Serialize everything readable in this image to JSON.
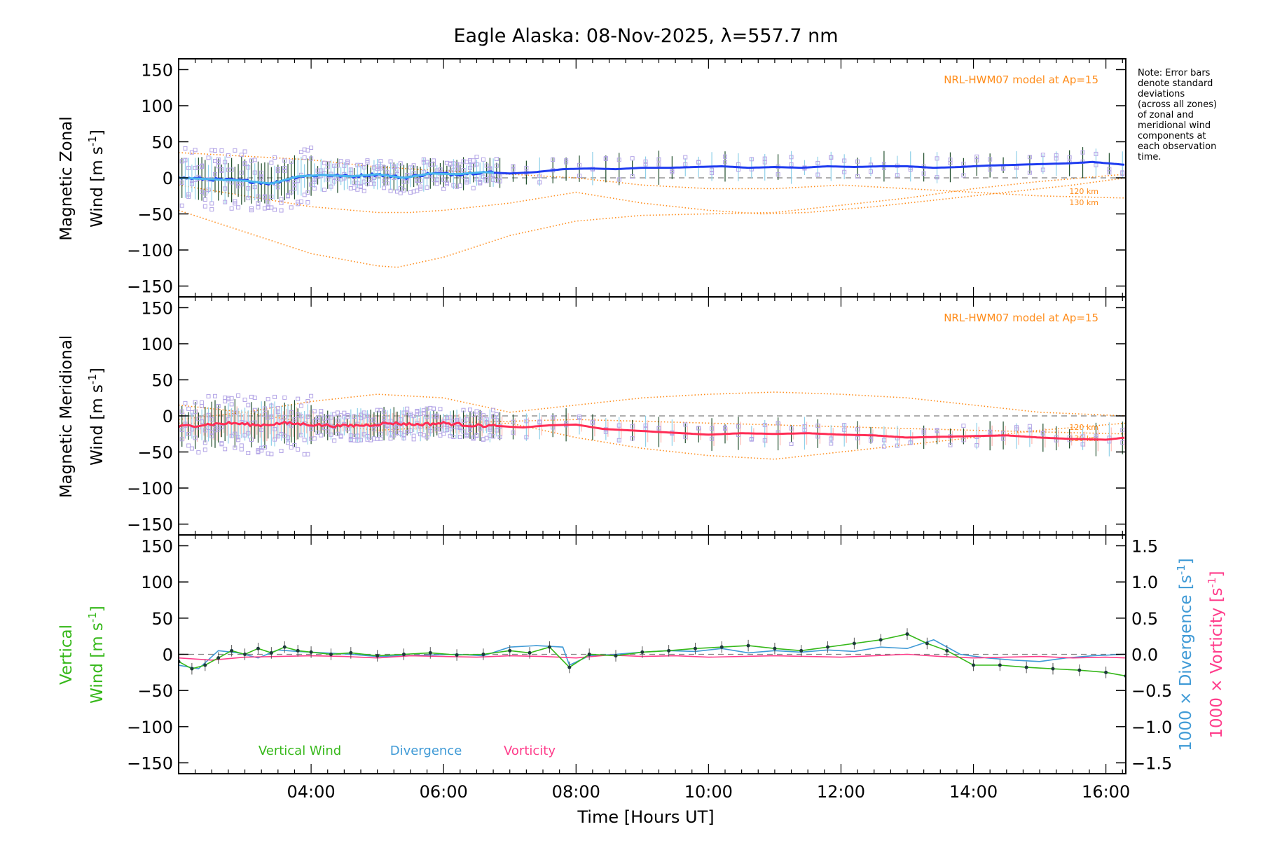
{
  "colors": {
    "frame": "#000000",
    "model": "#ff8c1a",
    "scatter": "#b3a4e6",
    "errbar_dark": "#1f4d2b",
    "errbar_light": "#8fd0e8",
    "zonal_line": "#1f3cf0",
    "zonal_line_light": "#49b6ee",
    "merid_line": "#ff2d55",
    "merid_band": "#ffb0a8",
    "vertical": "#36b81a",
    "divergence": "#3f9ad6",
    "vorticity": "#ff3d8b",
    "dash": "#7f7f7f"
  },
  "chart_data": [
    {
      "type": "line",
      "title": "Eagle Alaska: 08-Nov-2025, λ=557.7 nm",
      "ylabel_line1": "Magnetic Zonal",
      "ylabel_line2": "Wind [m s",
      "ylabel_sup": "-1",
      "ylabel_end": "]",
      "ylim": [
        -165,
        165
      ],
      "yticks": [
        150,
        100,
        50,
        0,
        -50,
        -100,
        -150
      ],
      "ytick_labels": [
        "150",
        "100",
        "50",
        "0",
        "−50",
        "−100",
        "−150"
      ],
      "xlim": [
        2.0,
        16.3
      ],
      "model_label": "NRL-HWM07 model at Ap=15",
      "model_alt_labels": [
        "120 km",
        "130 km"
      ],
      "note": [
        "Note: Error bars",
        "denote standard",
        "deviations",
        "(across all zones)",
        "of zonal and",
        "meridional wind",
        "components at",
        "each observation",
        "time."
      ],
      "series": [
        {
          "name": "mean wind",
          "x": [
            2.0,
            2.5,
            3.0,
            3.4,
            3.8,
            4.2,
            4.6,
            5.0,
            5.4,
            5.8,
            6.2,
            6.6,
            7.0,
            7.4,
            7.8,
            8.2,
            8.6,
            9.0,
            9.4,
            9.8,
            10.2,
            10.6,
            11.0,
            11.4,
            11.8,
            12.2,
            12.6,
            13.0,
            13.4,
            13.8,
            14.2,
            14.6,
            15.0,
            15.4,
            15.8,
            16.3
          ],
          "y": [
            0,
            -2,
            -4,
            -8,
            2,
            4,
            2,
            5,
            0,
            6,
            5,
            8,
            6,
            8,
            12,
            13,
            12,
            14,
            14,
            15,
            16,
            14,
            15,
            14,
            16,
            15,
            16,
            16,
            14,
            15,
            17,
            18,
            19,
            20,
            22,
            18
          ]
        },
        {
          "name": "HWM07 120 km",
          "x": [
            2.0,
            3.0,
            4.0,
            5.0,
            5.3,
            6.0,
            7.0,
            8.0,
            9.0,
            10.0,
            11.0,
            12.0,
            13.0,
            14.0,
            15.0,
            16.3
          ],
          "y": [
            -45,
            -75,
            -105,
            -122,
            -124,
            -110,
            -80,
            -60,
            -52,
            -50,
            -48,
            -38,
            -28,
            -15,
            -5,
            5
          ]
        },
        {
          "name": "HWM07 130 km",
          "x": [
            2.0,
            3.0,
            4.0,
            5.0,
            5.5,
            6.0,
            7.0,
            8.0,
            9.0,
            10.0,
            10.8,
            11.5,
            12.5,
            13.5,
            14.5,
            15.5,
            16.3
          ],
          "y": [
            -10,
            -25,
            -40,
            -48,
            -48,
            -45,
            -35,
            -20,
            -35,
            -45,
            -50,
            -48,
            -40,
            -30,
            -20,
            -10,
            0
          ]
        },
        {
          "name": "HWM07 upper",
          "x": [
            2.0,
            3.0,
            4.0,
            5.0,
            6.0,
            7.0,
            8.0,
            9.0,
            10.0,
            11.0,
            12.0,
            13.0,
            14.0,
            15.0,
            16.3
          ],
          "y": [
            35,
            30,
            25,
            15,
            10,
            5,
            0,
            -10,
            -15,
            -15,
            -10,
            -15,
            -20,
            -25,
            -28
          ]
        }
      ]
    },
    {
      "type": "line",
      "ylabel_line1": "Magnetic Meridional",
      "ylabel_line2": "Wind [m s",
      "ylabel_sup": "-1",
      "ylabel_end": "]",
      "ylim": [
        -165,
        165
      ],
      "yticks": [
        150,
        100,
        50,
        0,
        -50,
        -100,
        -150
      ],
      "ytick_labels": [
        "150",
        "100",
        "50",
        "0",
        "−50",
        "−100",
        "−150"
      ],
      "xlim": [
        2.0,
        16.3
      ],
      "model_label": "NRL-HWM07 model at Ap=15",
      "model_alt_labels": [
        "120 km",
        "130 km"
      ],
      "series": [
        {
          "name": "mean wind",
          "x": [
            2.0,
            2.4,
            2.8,
            3.2,
            3.6,
            4.0,
            4.4,
            4.8,
            5.2,
            5.6,
            6.0,
            6.4,
            6.8,
            7.2,
            7.6,
            8.0,
            8.4,
            8.8,
            9.2,
            9.6,
            10.0,
            10.5,
            11.0,
            11.5,
            12.0,
            12.5,
            13.0,
            13.5,
            14.0,
            14.5,
            15.0,
            15.5,
            16.0,
            16.3
          ],
          "y": [
            -15,
            -12,
            -10,
            -13,
            -10,
            -12,
            -14,
            -13,
            -10,
            -12,
            -10,
            -13,
            -14,
            -16,
            -13,
            -12,
            -18,
            -20,
            -22,
            -24,
            -26,
            -24,
            -25,
            -24,
            -26,
            -27,
            -30,
            -29,
            -28,
            -27,
            -30,
            -32,
            -33,
            -30
          ]
        },
        {
          "name": "HWM07 120 km",
          "x": [
            2.0,
            3.0,
            4.0,
            5.0,
            6.0,
            7.0,
            8.0,
            9.0,
            10.0,
            11.0,
            12.0,
            13.0,
            14.0,
            15.0,
            16.3
          ],
          "y": [
            15,
            5,
            -10,
            -20,
            -15,
            -10,
            -30,
            -45,
            -55,
            -60,
            -50,
            -40,
            -30,
            -20,
            -10
          ]
        },
        {
          "name": "HWM07 130 km",
          "x": [
            2.0,
            3.0,
            4.0,
            5.0,
            6.0,
            7.0,
            8.0,
            9.0,
            10.0,
            11.0,
            12.0,
            13.0,
            14.0,
            15.0,
            16.3
          ],
          "y": [
            -5,
            5,
            20,
            30,
            25,
            5,
            15,
            25,
            30,
            33,
            30,
            25,
            15,
            5,
            0
          ]
        },
        {
          "name": "HWM07 lower",
          "x": [
            2.0,
            4.0,
            6.0,
            8.0,
            10.0,
            12.0,
            14.0,
            16.3
          ],
          "y": [
            -10,
            -12,
            -10,
            -5,
            -10,
            -15,
            -20,
            -25
          ]
        }
      ]
    },
    {
      "type": "line",
      "ylabel_line1": "Vertical",
      "ylabel_line2": "Wind [m s",
      "ylabel_sup": "-1",
      "ylabel_end": "]",
      "ylim": [
        -165,
        165
      ],
      "yticks": [
        150,
        100,
        50,
        0,
        -50,
        -100,
        -150
      ],
      "ytick_labels": [
        "150",
        "100",
        "50",
        "0",
        "−50",
        "−100",
        "−150"
      ],
      "y2lim": [
        -1.65,
        1.65
      ],
      "y2ticks": [
        1.5,
        1.0,
        0.5,
        0.0,
        -0.5,
        -1.0,
        -1.5
      ],
      "y2tick_labels": [
        "1.5",
        "1.0",
        "0.5",
        "0.0",
        "−0.5",
        "−1.0",
        "−1.5"
      ],
      "y2label_div": "1000 × Divergence [s",
      "y2label_vort": "1000 × Vorticity [s",
      "y2label_sup": "-1",
      "y2label_end": "]",
      "xlim": [
        2.0,
        16.3
      ],
      "xticks": [
        4,
        6,
        8,
        10,
        12,
        14,
        16
      ],
      "xtick_labels": [
        "04:00",
        "06:00",
        "08:00",
        "10:00",
        "12:00",
        "14:00",
        "16:00"
      ],
      "xlabel": "Time [Hours UT]",
      "legend": [
        "Vertical Wind",
        "Divergence",
        "Vorticity"
      ],
      "series": [
        {
          "name": "Vertical Wind",
          "x": [
            2.0,
            2.2,
            2.4,
            2.6,
            2.8,
            3.0,
            3.2,
            3.4,
            3.6,
            3.8,
            4.0,
            4.3,
            4.6,
            5.0,
            5.4,
            5.8,
            6.2,
            6.6,
            7.0,
            7.3,
            7.6,
            7.9,
            8.2,
            8.6,
            9.0,
            9.4,
            9.8,
            10.2,
            10.6,
            11.0,
            11.4,
            11.8,
            12.2,
            12.6,
            13.0,
            13.3,
            13.6,
            14.0,
            14.4,
            14.8,
            15.2,
            15.6,
            16.0,
            16.3
          ],
          "y": [
            -10,
            -20,
            -15,
            -5,
            5,
            0,
            8,
            2,
            10,
            5,
            3,
            0,
            2,
            -2,
            0,
            2,
            -1,
            0,
            5,
            2,
            10,
            -18,
            0,
            -2,
            3,
            5,
            8,
            10,
            12,
            8,
            5,
            10,
            15,
            20,
            28,
            15,
            5,
            -15,
            -15,
            -18,
            -20,
            -22,
            -25,
            -30
          ]
        },
        {
          "name": "Divergence",
          "x": [
            2.0,
            2.3,
            2.6,
            2.9,
            3.2,
            3.5,
            3.8,
            4.2,
            4.6,
            5.0,
            5.4,
            5.8,
            6.2,
            6.6,
            7.0,
            7.4,
            7.8,
            7.9,
            8.2,
            8.6,
            9.0,
            9.4,
            9.8,
            10.2,
            10.6,
            11.0,
            11.4,
            11.8,
            12.2,
            12.6,
            13.0,
            13.4,
            13.8,
            14.2,
            14.6,
            15.0,
            15.4,
            15.8,
            16.3
          ],
          "y": [
            -0.15,
            -0.2,
            0.05,
            0.02,
            -0.05,
            0.06,
            0.04,
            0.02,
            0.0,
            -0.03,
            -0.02,
            -0.01,
            0.0,
            -0.02,
            0.1,
            0.12,
            0.1,
            -0.15,
            -0.02,
            0.0,
            0.03,
            0.05,
            0.04,
            0.08,
            0.02,
            0.05,
            0.03,
            0.06,
            0.04,
            0.1,
            0.08,
            0.2,
            0.0,
            -0.05,
            -0.08,
            -0.1,
            -0.05,
            -0.02,
            0.0
          ]
        },
        {
          "name": "Vorticity",
          "x": [
            2.0,
            2.5,
            3.0,
            3.5,
            4.0,
            4.5,
            5.0,
            5.5,
            6.0,
            6.5,
            7.0,
            7.5,
            8.0,
            8.5,
            9.0,
            9.5,
            10.0,
            10.5,
            11.0,
            11.5,
            12.0,
            12.5,
            13.0,
            13.5,
            14.0,
            14.5,
            15.0,
            15.5,
            16.0,
            16.3
          ],
          "y": [
            -0.05,
            -0.08,
            -0.04,
            -0.03,
            -0.02,
            -0.03,
            -0.05,
            -0.02,
            -0.03,
            -0.04,
            -0.02,
            -0.03,
            -0.05,
            -0.01,
            -0.03,
            -0.02,
            -0.04,
            -0.03,
            -0.02,
            -0.03,
            -0.04,
            -0.02,
            0.0,
            -0.03,
            -0.05,
            -0.04,
            -0.03,
            -0.05,
            -0.04,
            -0.05
          ]
        }
      ]
    }
  ]
}
